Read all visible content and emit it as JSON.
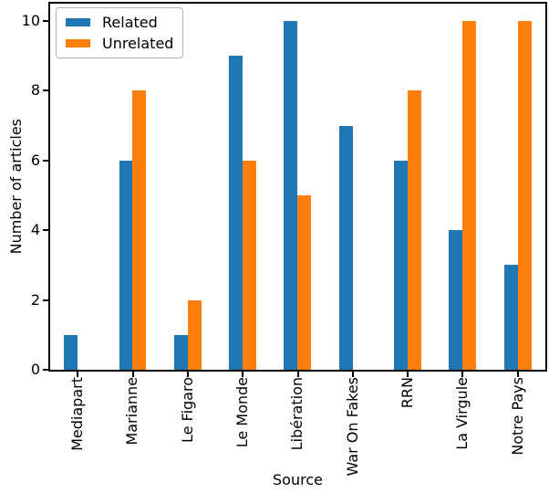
{
  "chart_data": {
    "type": "bar",
    "title": "",
    "xlabel": "Source",
    "ylabel": "Number of articles",
    "categories": [
      "Mediapart",
      "Marianne",
      "Le Figaro",
      "Le Monde",
      "Libération",
      "War On Fakes",
      "RRN",
      "La Virgule",
      "Notre Pays"
    ],
    "series": [
      {
        "name": "Related",
        "color": "#1f77b4",
        "values": [
          1,
          6,
          1,
          9,
          10,
          7,
          6,
          4,
          3
        ]
      },
      {
        "name": "Unrelated",
        "color": "#ff7f0e",
        "values": [
          0,
          8,
          2,
          6,
          5,
          0,
          8,
          10,
          10
        ]
      }
    ],
    "yticks": [
      0,
      2,
      4,
      6,
      8,
      10
    ],
    "ylim": [
      0,
      10.5
    ],
    "grid": false,
    "legend_position": "upper left"
  },
  "colors": {
    "background": "#ffffff",
    "axis": "#000000",
    "text": "#000000",
    "legend_border": "#b0b0b0"
  }
}
